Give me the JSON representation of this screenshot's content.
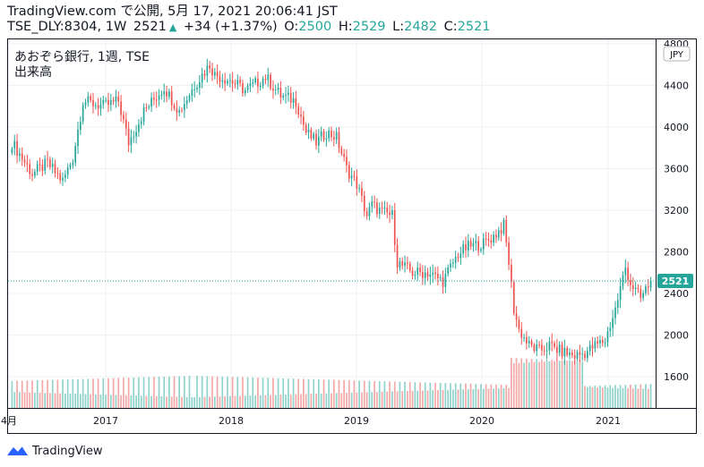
{
  "header": {
    "line1": "TradingView.com で公開, 5月 17, 2021 20:06:41 JST",
    "symbol": "TSE_DLY:8304, 1W",
    "last": "2521",
    "change": "+34 (+1.37%)",
    "o_label": "O:",
    "o_value": "2500",
    "h_label": "H:",
    "h_value": "2529",
    "l_label": "L:",
    "l_value": "2482",
    "c_label": "C:",
    "c_value": "2521"
  },
  "legend": {
    "title": "あおぞら銀行, 1週, TSE",
    "volume": "出来高"
  },
  "currency": "JPY",
  "price_tag": "2521",
  "footer": {
    "brand": "TradingView"
  },
  "colors": {
    "up": "#26a69a",
    "down": "#ef5350",
    "vol_up": "#8fd3cb",
    "vol_down": "#f4a9a8",
    "grid": "#eef0f3",
    "axis_text": "#131722"
  },
  "chart_data": {
    "type": "candlestick",
    "title": "あおぞら銀行, 1週, TSE",
    "ylim": [
      1300,
      4850
    ],
    "y_ticks": [
      "4800",
      "4400",
      "4000",
      "3600",
      "3200",
      "2800",
      "2400",
      "2000",
      "1600"
    ],
    "x_ticks": [
      "4月",
      "2017",
      "2018",
      "2019",
      "2020",
      "2021"
    ],
    "last_price": 2521,
    "anchors": [
      [
        0,
        3850
      ],
      [
        8,
        3550
      ],
      [
        14,
        3650
      ],
      [
        20,
        3480
      ],
      [
        24,
        3700
      ],
      [
        28,
        4250
      ],
      [
        36,
        4200
      ],
      [
        42,
        4250
      ],
      [
        46,
        3850
      ],
      [
        52,
        4150
      ],
      [
        60,
        4380
      ],
      [
        66,
        4150
      ],
      [
        72,
        4400
      ],
      [
        78,
        4600
      ],
      [
        80,
        4500
      ],
      [
        86,
        4450
      ],
      [
        92,
        4350
      ],
      [
        100,
        4480
      ],
      [
        106,
        4300
      ],
      [
        112,
        4250
      ],
      [
        116,
        3950
      ],
      [
        120,
        3850
      ],
      [
        124,
        3950
      ],
      [
        128,
        3900
      ],
      [
        132,
        3600
      ],
      [
        136,
        3450
      ],
      [
        140,
        3150
      ],
      [
        142,
        3250
      ],
      [
        146,
        3180
      ],
      [
        150,
        3150
      ],
      [
        152,
        2700
      ],
      [
        158,
        2600
      ],
      [
        164,
        2600
      ],
      [
        170,
        2520
      ],
      [
        176,
        2780
      ],
      [
        180,
        2850
      ],
      [
        186,
        2880
      ],
      [
        190,
        2950
      ],
      [
        194,
        3050
      ],
      [
        196,
        2700
      ],
      [
        198,
        2250
      ],
      [
        200,
        2050
      ],
      [
        204,
        1900
      ],
      [
        208,
        1850
      ],
      [
        212,
        1900
      ],
      [
        216,
        1850
      ],
      [
        222,
        1800
      ],
      [
        226,
        1830
      ],
      [
        230,
        1900
      ],
      [
        234,
        1950
      ],
      [
        238,
        2250
      ],
      [
        242,
        2650
      ],
      [
        244,
        2500
      ],
      [
        248,
        2350
      ],
      [
        252,
        2521
      ]
    ]
  }
}
